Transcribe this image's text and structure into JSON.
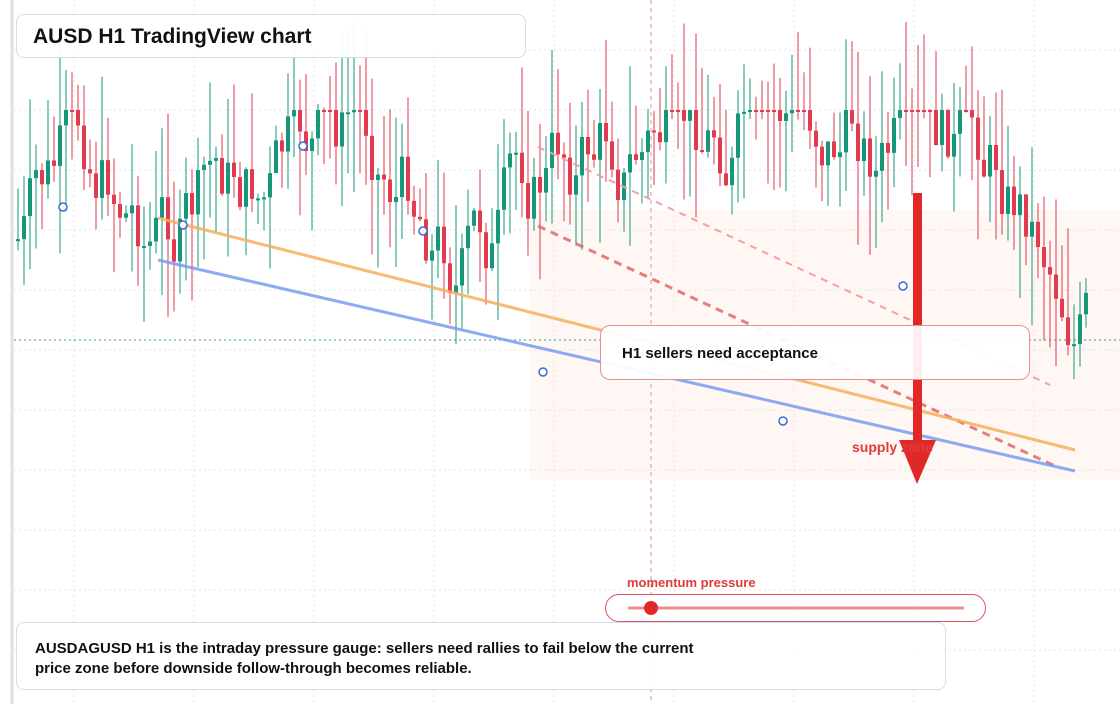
{
  "header": {
    "title": "AUSD H1 TradingView chart"
  },
  "callout": {
    "label": "H1 sellers need acceptance"
  },
  "zone": {
    "label": "supply zone"
  },
  "gauge": {
    "label": "momentum pressure"
  },
  "caption": {
    "text": "AUSDAGUSD H1 is the intraday pressure gauge: sellers need rallies to fail below the current price zone before downside follow-through becomes reliable."
  }
}
